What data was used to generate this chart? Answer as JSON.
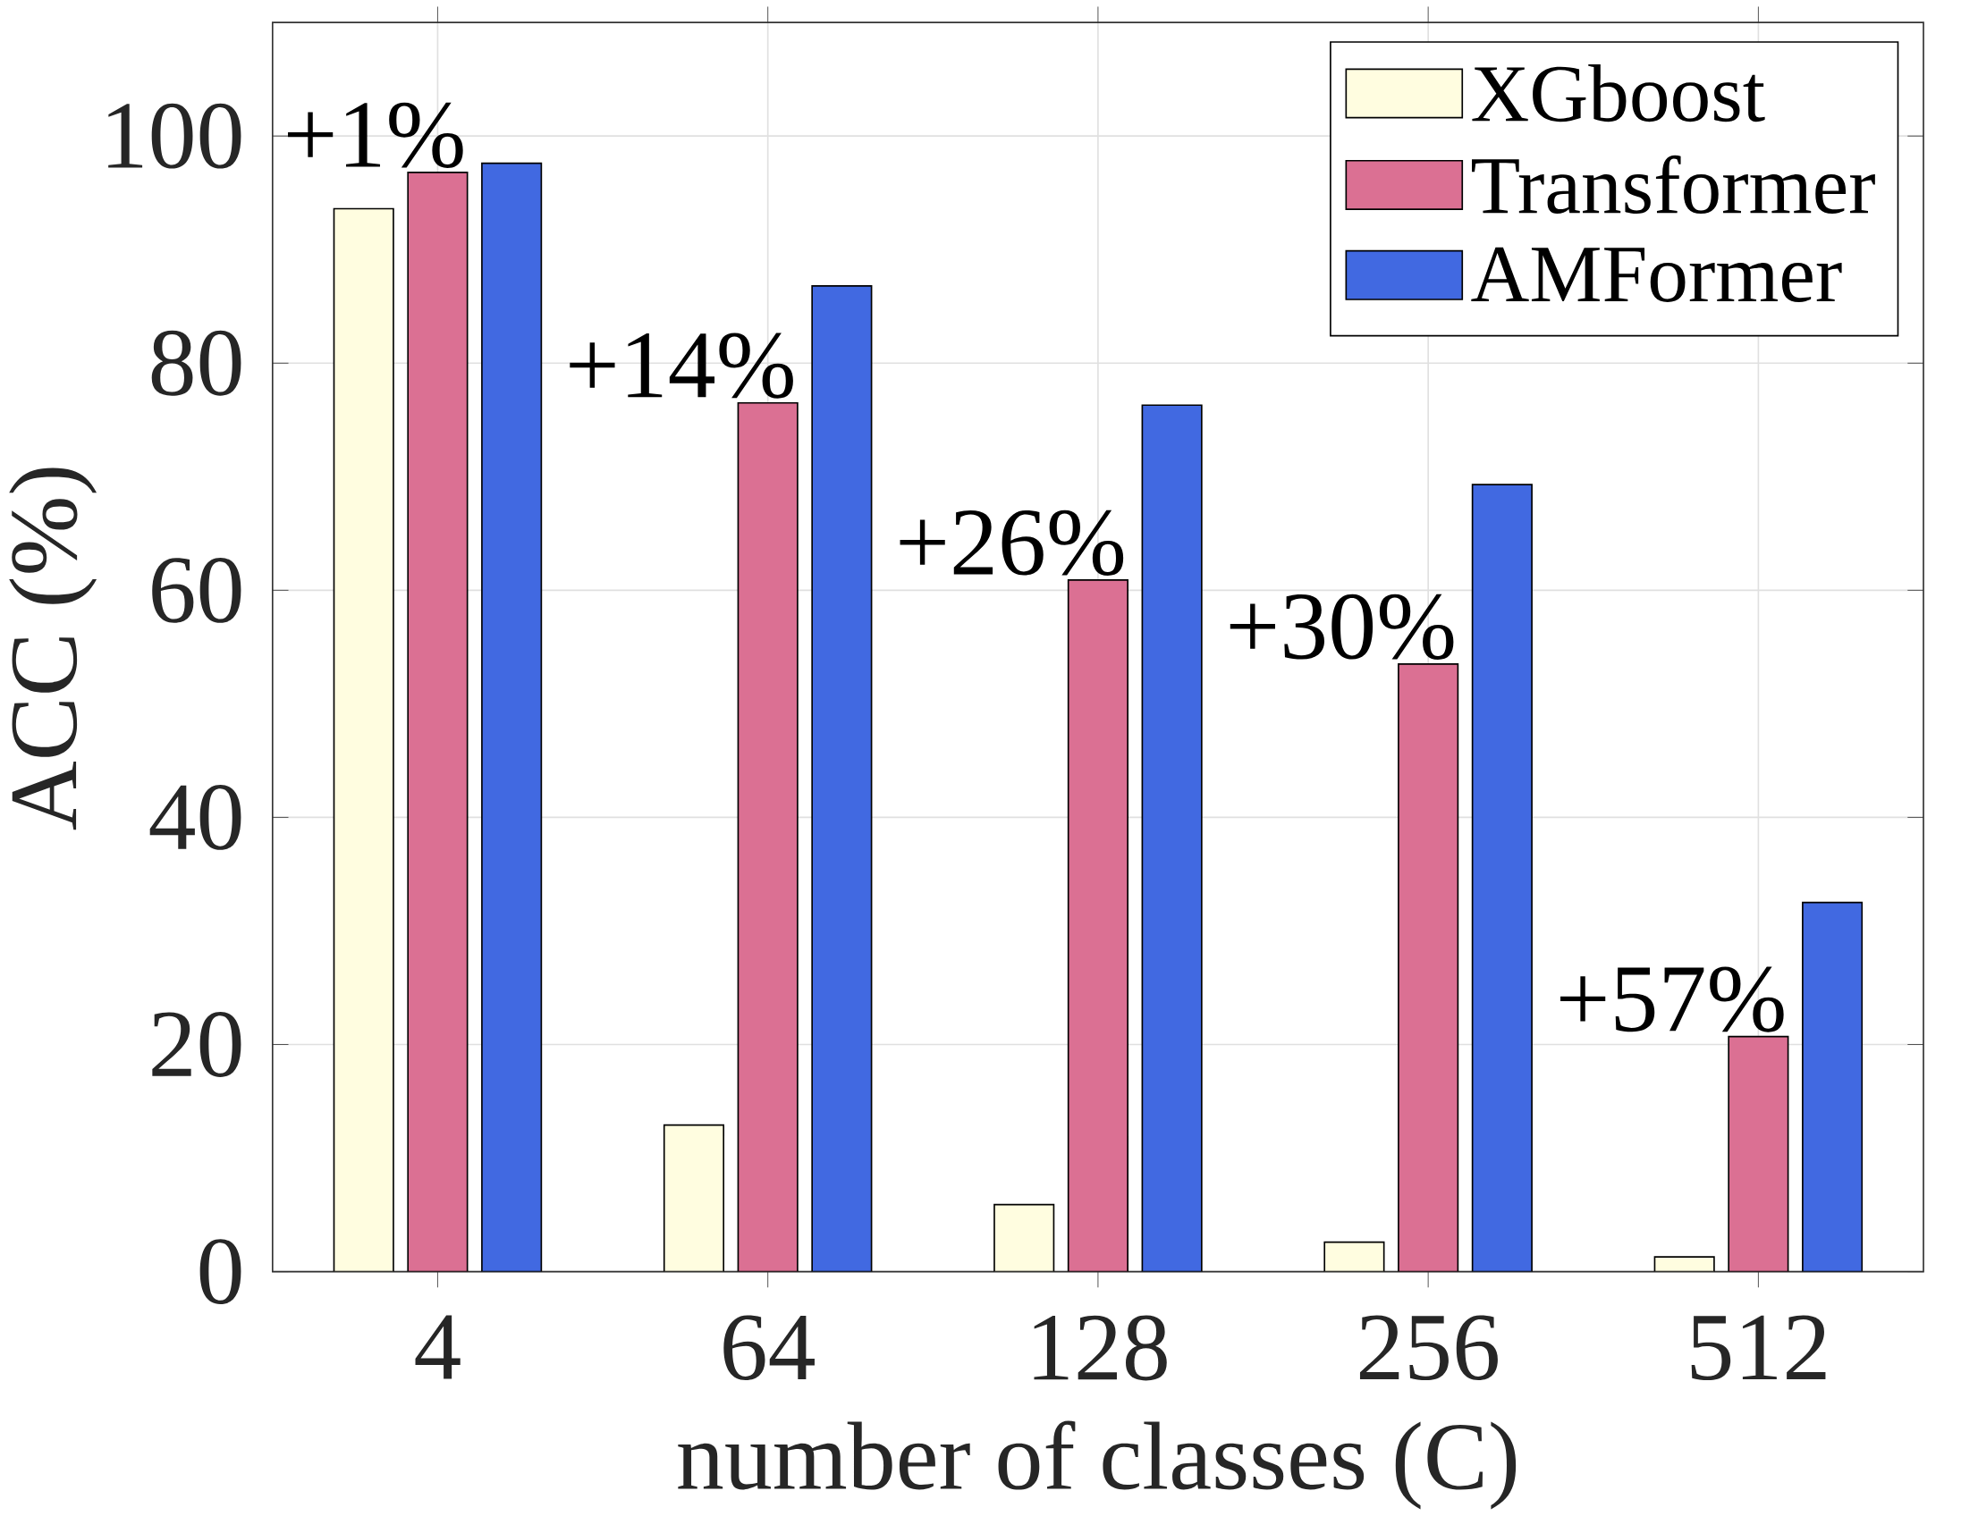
{
  "chart_data": {
    "type": "bar",
    "xlabel": "number of classes (C)",
    "ylabel": "ACC (%)",
    "categories": [
      "4",
      "64",
      "128",
      "256",
      "512"
    ],
    "series": [
      {
        "name": "XGboost",
        "color": "#fffde0",
        "values": [
          93.6,
          12.9,
          5.9,
          2.6,
          1.3
        ]
      },
      {
        "name": "Transformer",
        "color": "#db7093",
        "values": [
          96.8,
          76.5,
          60.9,
          53.5,
          20.7
        ]
      },
      {
        "name": "AMFormer",
        "color": "#4169e1",
        "values": [
          97.6,
          86.8,
          76.3,
          69.3,
          32.5
        ]
      }
    ],
    "ylim": [
      0,
      110
    ],
    "yticks": [
      0,
      20,
      40,
      60,
      80,
      100
    ],
    "grid": true,
    "legend": "top right",
    "annotations": [
      {
        "text": "+1%",
        "x": "4",
        "y": 96.8
      },
      {
        "text": "+14%",
        "x": "64",
        "y": 76.5
      },
      {
        "text": "+26%",
        "x": "128",
        "y": 60.9
      },
      {
        "text": "+30%",
        "x": "256",
        "y": 53.5
      },
      {
        "text": "+57%",
        "x": "512",
        "y": 20.7
      }
    ]
  }
}
